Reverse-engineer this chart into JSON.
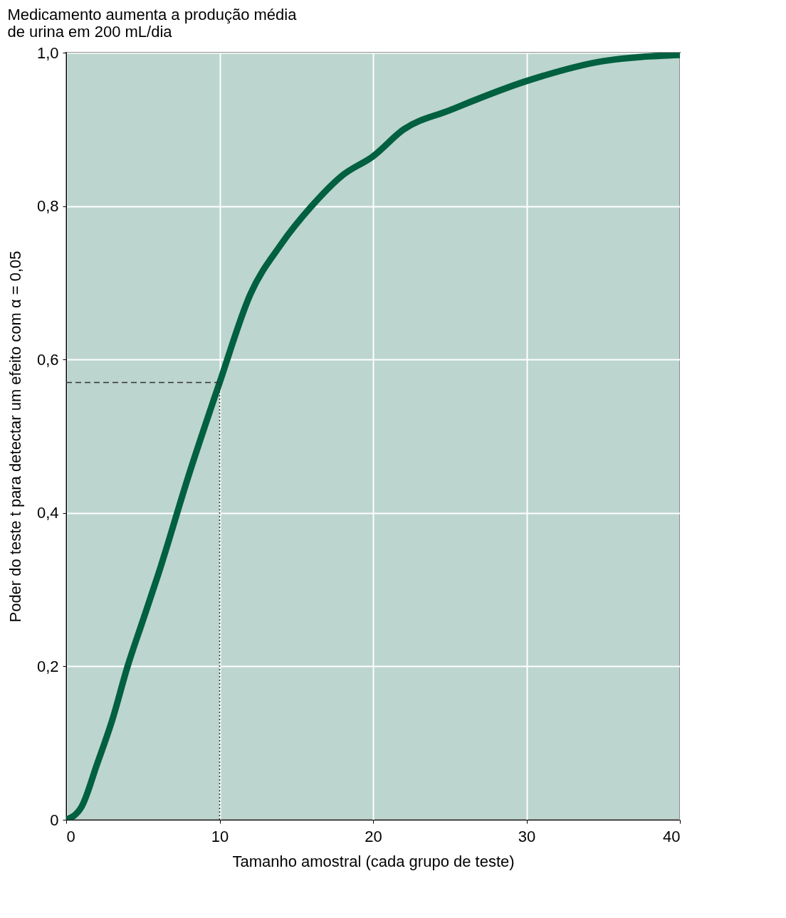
{
  "chart_data": {
    "type": "line",
    "title": "Medicamento aumenta a produção média\nde urina em 200 mL/dia",
    "xlabel": "Tamanho amostral (cada grupo de teste)",
    "ylabel": "Poder do teste t para detectar um efeito com α = 0,05",
    "series": [
      {
        "color": "#00603f",
        "x": [
          0,
          1,
          2,
          3,
          4,
          5,
          6,
          8,
          10,
          12,
          14,
          16,
          18,
          20,
          22,
          25,
          30,
          35,
          40
        ],
        "values": [
          0,
          0.017,
          0.072,
          0.13,
          0.2,
          0.26,
          0.32,
          0.45,
          0.57,
          0.685,
          0.75,
          0.8,
          0.84,
          0.865,
          0.9,
          0.925,
          0.963,
          0.989,
          0.997
        ]
      },
      {
        "type": "line",
        "color": "#333333",
        "line_style": "dashed",
        "x": [
          0,
          10
        ],
        "values": [
          0.57,
          0.57
        ]
      },
      {
        "type": "line",
        "color": "#333333",
        "line_style": "dotted",
        "x": [
          10,
          10
        ],
        "values": [
          0,
          0.57
        ]
      }
    ],
    "xlim": [
      0,
      40
    ],
    "xticks": [
      0,
      10,
      20,
      30,
      40
    ],
    "ylim": [
      0,
      1
    ],
    "yticks": [
      0,
      {
        "value": 0.2,
        "label": "0,2"
      },
      {
        "value": 0.4,
        "label": "0,4"
      },
      {
        "value": 0.6,
        "label": "0,6"
      },
      {
        "value": 0.8,
        "label": "0,8"
      },
      {
        "value": 1,
        "label": "1,0"
      }
    ],
    "grid": true
  }
}
